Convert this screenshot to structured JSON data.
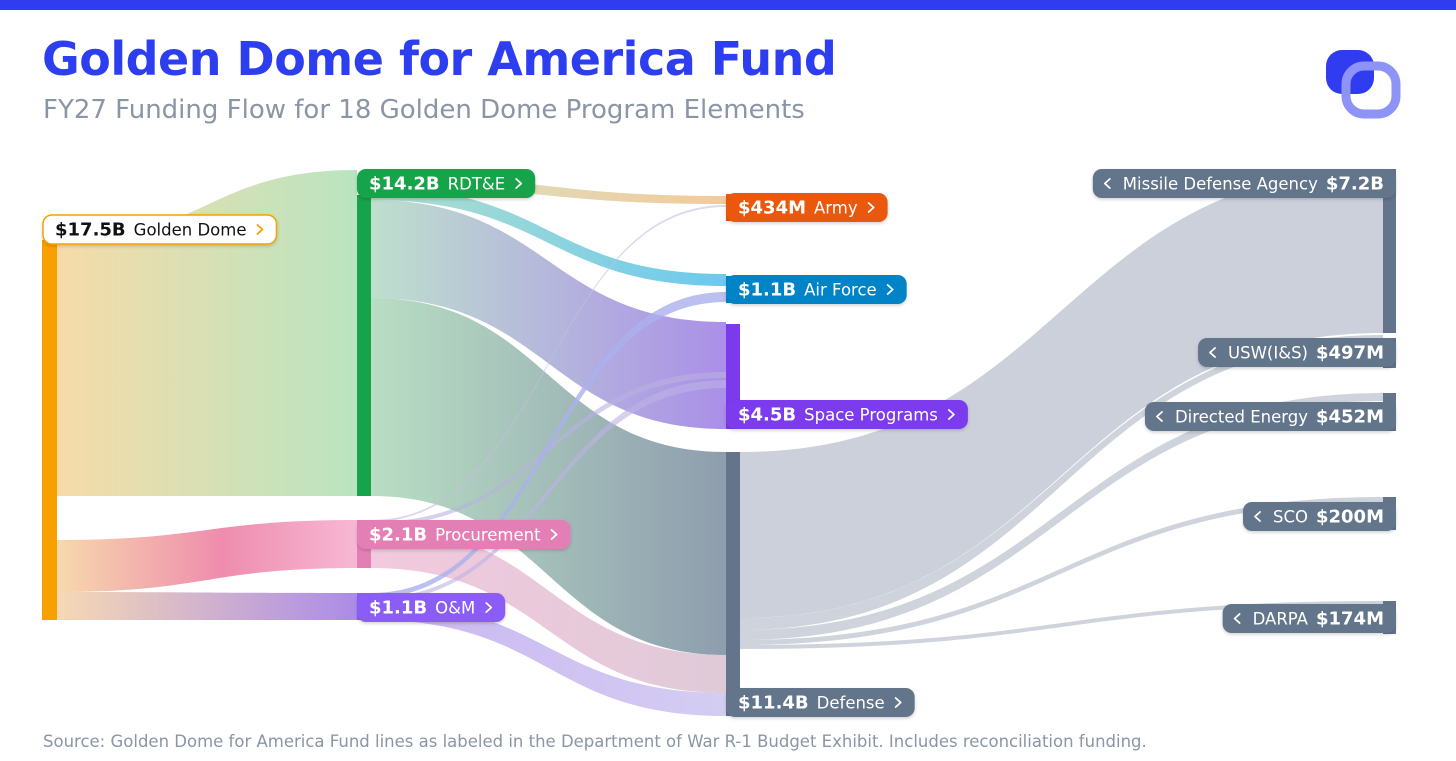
{
  "header": {
    "title": "Golden Dome for America Fund",
    "subtitle": "FY27 Funding Flow for 18 Golden Dome Program Elements"
  },
  "footer": {
    "source": "Source: Golden Dome for America Fund lines as labeled in the Department of War R-1 Budget Exhibit. Includes reconciliation funding."
  },
  "logo": {
    "icon": "linked-rounded-squares-logo-icon",
    "primary_color": "#2f3cf0",
    "secondary_color": "#8e93f7"
  },
  "chart_data": {
    "type": "sankey",
    "title": "Golden Dome for America Fund",
    "subtitle": "FY27 Funding Flow for 18 Golden Dome Program Elements",
    "units": "USD billions",
    "nodes": [
      {
        "id": "gd",
        "value_label": "$17.5B",
        "name": "Golden Dome",
        "value": 17.5,
        "column": 0,
        "color": "#f8a000",
        "arrow": "right"
      },
      {
        "id": "rdte",
        "value_label": "$14.2B",
        "name": "RDT&E",
        "value": 14.2,
        "column": 1,
        "color": "#16a34a",
        "arrow": "right"
      },
      {
        "id": "proc",
        "value_label": "$2.1B",
        "name": "Procurement",
        "value": 2.1,
        "column": 1,
        "color": "#e47fb6",
        "arrow": "right"
      },
      {
        "id": "om",
        "value_label": "$1.1B",
        "name": "O&M",
        "value": 1.1,
        "column": 1,
        "color": "#8b5cf6",
        "arrow": "right"
      },
      {
        "id": "army",
        "value_label": "$434M",
        "name": "Army",
        "value": 0.434,
        "column": 2,
        "color": "#ea580c",
        "arrow": "right"
      },
      {
        "id": "af",
        "value_label": "$1.1B",
        "name": "Air Force",
        "value": 1.1,
        "column": 2,
        "color": "#0284c7",
        "arrow": "right"
      },
      {
        "id": "space",
        "value_label": "$4.5B",
        "name": "Space Programs",
        "value": 4.5,
        "column": 2,
        "color": "#7c3aed",
        "arrow": "right"
      },
      {
        "id": "def",
        "value_label": "$11.4B",
        "name": "Defense",
        "value": 11.4,
        "column": 2,
        "color": "#64748b",
        "arrow": "right"
      },
      {
        "id": "mda",
        "value_label": "$7.2B",
        "name": "Missile Defense Agency",
        "value": 7.2,
        "column": 3,
        "color": "#64748b",
        "arrow": "left"
      },
      {
        "id": "usw",
        "value_label": "$497M",
        "name": "USW(I&S)",
        "value": 0.497,
        "column": 3,
        "color": "#64748b",
        "arrow": "left"
      },
      {
        "id": "de",
        "value_label": "$452M",
        "name": "Directed Energy",
        "value": 0.452,
        "column": 3,
        "color": "#64748b",
        "arrow": "left"
      },
      {
        "id": "sco",
        "value_label": "$200M",
        "name": "SCO",
        "value": 0.2,
        "column": 3,
        "color": "#64748b",
        "arrow": "left"
      },
      {
        "id": "darpa",
        "value_label": "$174M",
        "name": "DARPA",
        "value": 0.174,
        "column": 3,
        "color": "#64748b",
        "arrow": "left"
      }
    ],
    "links": [
      {
        "source": "gd",
        "target": "rdte",
        "value": 14.2
      },
      {
        "source": "gd",
        "target": "proc",
        "value": 2.1
      },
      {
        "source": "gd",
        "target": "om",
        "value": 1.1
      },
      {
        "source": "rdte",
        "target": "army",
        "value": 0.4
      },
      {
        "source": "rdte",
        "target": "af",
        "value": 0.7
      },
      {
        "source": "rdte",
        "target": "space",
        "value": 4.3
      },
      {
        "source": "rdte",
        "target": "def",
        "value": 8.8
      },
      {
        "source": "proc",
        "target": "def",
        "value": 1.9
      },
      {
        "source": "proc",
        "target": "army",
        "value": 0.034
      },
      {
        "source": "proc",
        "target": "space",
        "value": 0.1
      },
      {
        "source": "om",
        "target": "def",
        "value": 0.7
      },
      {
        "source": "om",
        "target": "af",
        "value": 0.3
      },
      {
        "source": "om",
        "target": "space",
        "value": 0.1
      },
      {
        "source": "def",
        "target": "mda",
        "value": 7.2
      },
      {
        "source": "def",
        "target": "usw",
        "value": 0.497
      },
      {
        "source": "def",
        "target": "de",
        "value": 0.452
      },
      {
        "source": "def",
        "target": "sco",
        "value": 0.2
      },
      {
        "source": "def",
        "target": "darpa",
        "value": 0.174
      }
    ]
  }
}
